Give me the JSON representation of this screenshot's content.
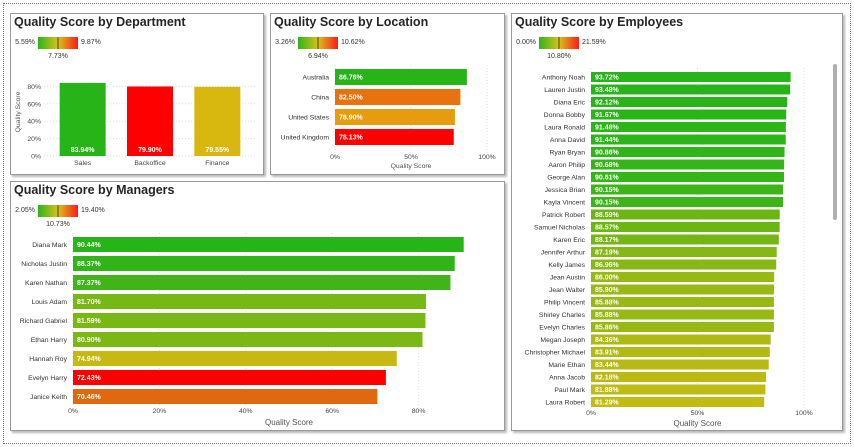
{
  "gradient": {
    "low": "#2db51a",
    "mid": "#d8c21a",
    "high": "#ff1a1a"
  },
  "panels": {
    "department": {
      "title": "Quality Score by Department",
      "legend": {
        "min": "5.59%",
        "max": "9.87%",
        "mid": "7.73%"
      },
      "chart_data": {
        "type": "bar",
        "categories": [
          "Sales",
          "Backoffice",
          "Finance"
        ],
        "values": [
          83.94,
          79.9,
          79.55
        ],
        "value_labels": [
          "83.94%",
          "79.90%",
          "79.55%"
        ],
        "colors": [
          "#26b418",
          "#ff0000",
          "#d8b70e"
        ],
        "ylabel": "Quality Score",
        "ylim": [
          0,
          100
        ],
        "yticks": [
          0,
          20,
          40,
          60,
          80
        ],
        "ytick_labels": [
          "0%",
          "20%",
          "40%",
          "60%",
          "80%"
        ]
      }
    },
    "location": {
      "title": "Quality Score by Location",
      "legend": {
        "min": "3.26%",
        "max": "10.62%",
        "mid": "6.94%"
      },
      "chart_data": {
        "type": "bar",
        "orientation": "horizontal",
        "categories": [
          "Australia",
          "China",
          "United States",
          "United Kingdom"
        ],
        "values": [
          86.76,
          82.5,
          78.9,
          78.13
        ],
        "value_labels": [
          "86.76%",
          "82.50%",
          "78.90%",
          "78.13%"
        ],
        "colors": [
          "#26b418",
          "#e8720e",
          "#e69c0e",
          "#ff0000"
        ],
        "xlabel": "Quality Score",
        "xlim": [
          0,
          100
        ],
        "xticks": [
          0,
          50,
          100
        ],
        "xtick_labels": [
          "0%",
          "50%",
          "100%"
        ]
      }
    },
    "employees": {
      "title": "Quality Score by Employees",
      "legend": {
        "min": "0.00%",
        "max": "21.59%",
        "mid": "10.80%"
      },
      "chart_data": {
        "type": "bar",
        "orientation": "horizontal",
        "categories": [
          "Anthony Noah",
          "Lauren Justin",
          "Diana Eric",
          "Donna Bobby",
          "Laura Ronald",
          "Anna David",
          "Ryan Bryan",
          "Aaron Philip",
          "George Alan",
          "Jessica Brian",
          "Kayla Vincent",
          "Patrick Robert",
          "Samuel Nicholas",
          "Karen Eric",
          "Jennifer Arthur",
          "Kelly James",
          "Jean Austin",
          "Jean Walter",
          "Philip Vincent",
          "Shirley Charles",
          "Evelyn Charles",
          "Megan Joseph",
          "Christopher Michael",
          "Marie Ethan",
          "Anna Jacob",
          "Paul Mark",
          "Laura Robert"
        ],
        "values": [
          93.72,
          93.48,
          92.12,
          91.67,
          91.48,
          91.44,
          90.86,
          90.68,
          90.61,
          90.15,
          90.15,
          88.59,
          88.57,
          88.17,
          87.19,
          86.96,
          86.0,
          85.9,
          85.88,
          85.88,
          85.86,
          84.36,
          83.91,
          83.44,
          82.18,
          81.88,
          81.29
        ],
        "value_labels": [
          "93.72%",
          "93.48%",
          "92.12%",
          "91.67%",
          "91.48%",
          "91.44%",
          "90.86%",
          "90.68%",
          "90.61%",
          "90.15%",
          "90.15%",
          "88.59%",
          "88.57%",
          "88.17%",
          "87.19%",
          "86.96%",
          "86.00%",
          "85.90%",
          "85.88%",
          "85.88%",
          "85.86%",
          "84.36%",
          "83.91%",
          "83.44%",
          "82.18%",
          "81.88%",
          "81.29%"
        ],
        "colors": [
          "#26b418",
          "#26b418",
          "#28b418",
          "#2ab418",
          "#2cb418",
          "#2cb418",
          "#30b518",
          "#34b518",
          "#36b518",
          "#3cb518",
          "#3cb518",
          "#6cb614",
          "#6cb614",
          "#74b614",
          "#84b814",
          "#88b814",
          "#96b914",
          "#98b914",
          "#98b914",
          "#98b914",
          "#98b914",
          "#aeb912",
          "#b0ba12",
          "#b6ba12",
          "#bcba12",
          "#bebb12",
          "#c2bb12"
        ],
        "xlabel": "Quality Score",
        "xlim": [
          0,
          100
        ],
        "xticks": [
          0,
          50,
          100
        ],
        "xtick_labels": [
          "0%",
          "50%",
          "100%"
        ]
      }
    },
    "managers": {
      "title": "Quality Score by Managers",
      "legend": {
        "min": "2.05%",
        "max": "19.40%",
        "mid": "10.73%"
      },
      "chart_data": {
        "type": "bar",
        "orientation": "horizontal",
        "categories": [
          "Diana Mark",
          "Nicholas Justin",
          "Karen Nathan",
          "Louis Adam",
          "Richard Gabriel",
          "Ethan Harry",
          "Hannah Roy",
          "Evelyn Harry",
          "Janice Keith"
        ],
        "values": [
          90.44,
          88.37,
          87.37,
          81.7,
          81.59,
          80.9,
          74.94,
          72.43,
          70.46
        ],
        "value_labels": [
          "90.44%",
          "88.37%",
          "87.37%",
          "81.70%",
          "81.59%",
          "80.90%",
          "74.94%",
          "72.43%",
          "70.46%"
        ],
        "colors": [
          "#26b418",
          "#30b418",
          "#40b418",
          "#78b814",
          "#78b814",
          "#7cb814",
          "#c8b812",
          "#ff0000",
          "#e06810"
        ],
        "xlabel": "Quality Score",
        "xlim": [
          0,
          100
        ],
        "xticks": [
          0,
          20,
          40,
          60,
          80
        ],
        "xtick_labels": [
          "0%",
          "20%",
          "40%",
          "60%",
          "80%"
        ]
      }
    }
  }
}
